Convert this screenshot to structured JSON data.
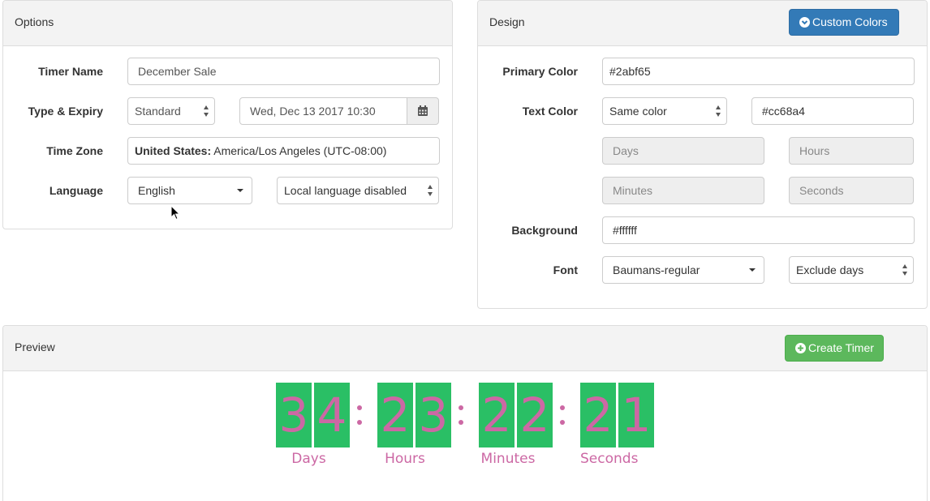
{
  "options": {
    "title": "Options",
    "timer_name": {
      "label": "Timer Name",
      "value": "December Sale"
    },
    "type_expiry": {
      "label": "Type & Expiry",
      "type_value": "Standard",
      "date_value": "Wed, Dec 13 2017 10:30",
      "icon": "calendar-icon"
    },
    "time_zone": {
      "label": "Time Zone",
      "country": "United States:",
      "zone": "America/Los Angeles (UTC-08:00)"
    },
    "language": {
      "label": "Language",
      "value": "English",
      "local_value": "Local language disabled"
    }
  },
  "design": {
    "title": "Design",
    "custom_colors_button": "Custom Colors",
    "primary_color": {
      "label": "Primary Color",
      "value": "#2abf65"
    },
    "text_color": {
      "label": "Text Color",
      "mode": "Same color",
      "value": "#cc68a4"
    },
    "unit_labels": {
      "days": "Days",
      "hours": "Hours",
      "minutes": "Minutes",
      "seconds": "Seconds"
    },
    "background": {
      "label": "Background",
      "value": "#ffffff"
    },
    "font": {
      "label": "Font",
      "value": "Baumans-regular",
      "exclude": "Exclude days"
    }
  },
  "preview": {
    "title": "Preview",
    "create_button": "Create Timer",
    "groups": [
      {
        "digits": [
          "3",
          "4"
        ],
        "label": "Days"
      },
      {
        "digits": [
          "2",
          "3"
        ],
        "label": "Hours"
      },
      {
        "digits": [
          "2",
          "2"
        ],
        "label": "Minutes"
      },
      {
        "digits": [
          "2",
          "1"
        ],
        "label": "Seconds"
      }
    ]
  },
  "colors": {
    "primary_button": "#337ab7",
    "success_button": "#5cb85c",
    "digit_background": "#2abf65",
    "digit_text": "#cc68a4"
  }
}
